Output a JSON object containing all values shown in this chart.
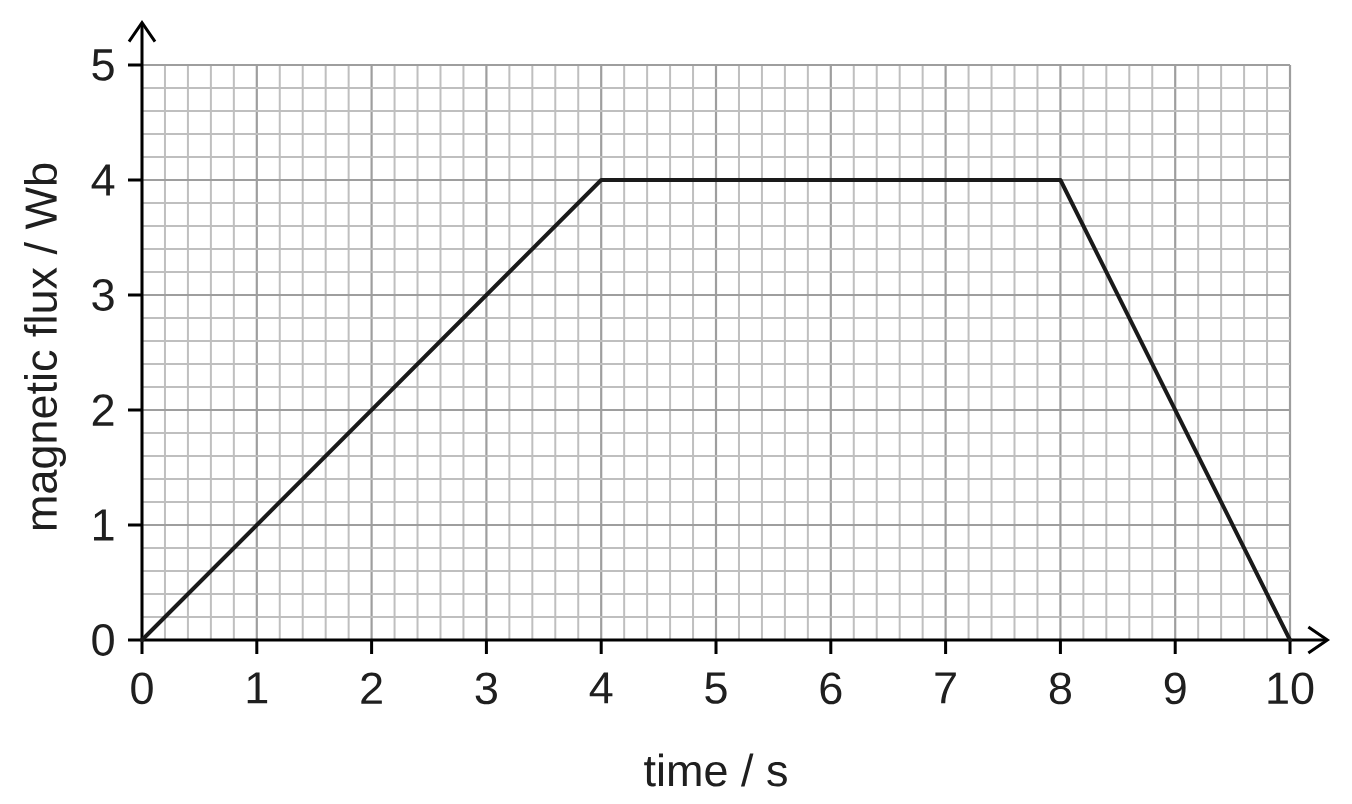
{
  "chart_data": {
    "type": "line",
    "xlabel": "time / s",
    "ylabel": "magnetic flux / Wb",
    "x": [
      0,
      4,
      8,
      10
    ],
    "values": [
      0,
      4,
      4,
      0
    ],
    "color": "#1a1a1a",
    "xlim": [
      0,
      10
    ],
    "ylim": [
      0,
      5
    ],
    "xticks": [
      0,
      1,
      2,
      3,
      4,
      5,
      6,
      7,
      8,
      9,
      10
    ],
    "yticks": [
      0,
      1,
      2,
      3,
      4,
      5
    ],
    "grid": true
  }
}
